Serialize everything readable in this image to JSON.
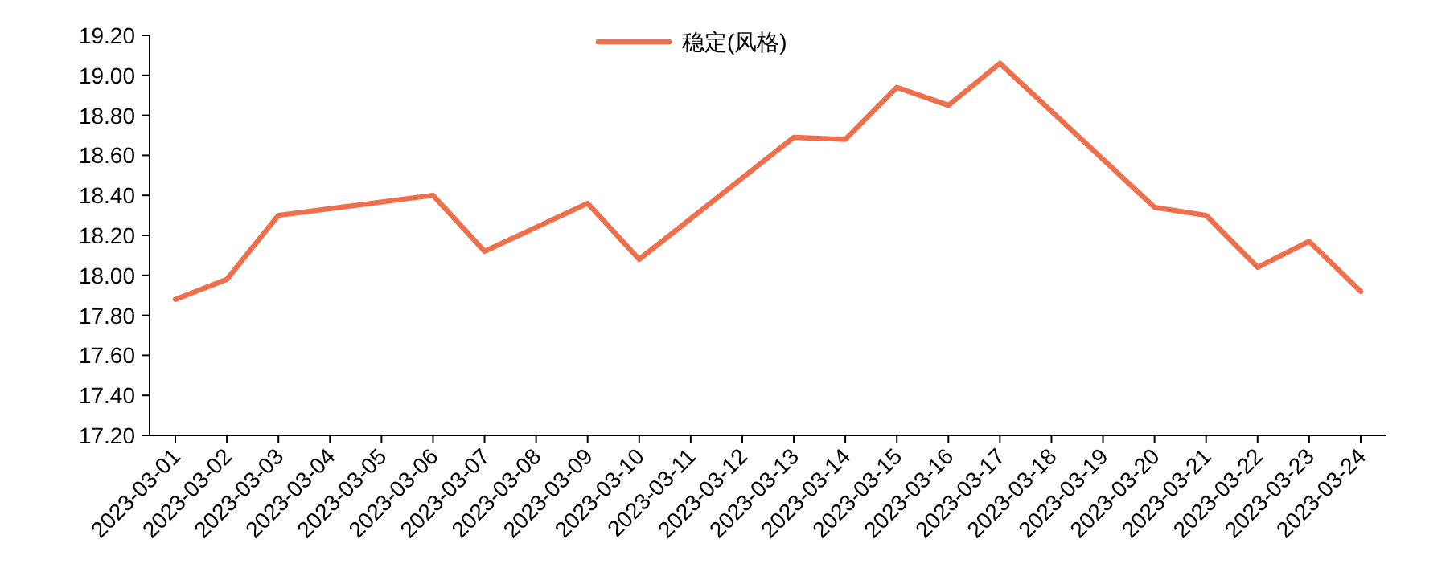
{
  "chart_data": {
    "type": "line",
    "x": [
      "2023-03-01",
      "2023-03-02",
      "2023-03-03",
      "2023-03-06",
      "2023-03-07",
      "2023-03-09",
      "2023-03-10",
      "2023-03-13",
      "2023-03-14",
      "2023-03-15",
      "2023-03-16",
      "2023-03-17",
      "2023-03-20",
      "2023-03-21",
      "2023-03-22",
      "2023-03-23",
      "2023-03-24"
    ],
    "series": [
      {
        "name": "稳定(风格)",
        "color": "#ee6f4b",
        "values": [
          17.88,
          17.98,
          18.3,
          18.4,
          18.12,
          18.36,
          18.08,
          18.69,
          18.68,
          18.94,
          18.85,
          19.06,
          18.34,
          18.3,
          18.04,
          18.17,
          17.92
        ]
      }
    ],
    "xticks": [
      "2023-03-01",
      "2023-03-02",
      "2023-03-03",
      "2023-03-04",
      "2023-03-05",
      "2023-03-06",
      "2023-03-07",
      "2023-03-08",
      "2023-03-09",
      "2023-03-10",
      "2023-03-11",
      "2023-03-12",
      "2023-03-13",
      "2023-03-14",
      "2023-03-15",
      "2023-03-16",
      "2023-03-17",
      "2023-03-18",
      "2023-03-19",
      "2023-03-20",
      "2023-03-21",
      "2023-03-22",
      "2023-03-23",
      "2023-03-24"
    ],
    "xlim": [
      "2023-02-28T12:00",
      "2023-03-24T12:00"
    ],
    "ylim": [
      17.2,
      19.2
    ],
    "yticks": [
      {
        "value": 17.2,
        "label": "17.20"
      },
      {
        "value": 17.4,
        "label": "17.40"
      },
      {
        "value": 17.6,
        "label": "17.60"
      },
      {
        "value": 17.8,
        "label": "17.80"
      },
      {
        "value": 18.0,
        "label": "18.00"
      },
      {
        "value": 18.2,
        "label": "18.20"
      },
      {
        "value": 18.4,
        "label": "18.40"
      },
      {
        "value": 18.6,
        "label": "18.60"
      },
      {
        "value": 18.8,
        "label": "18.80"
      },
      {
        "value": 19.0,
        "label": "19.00"
      },
      {
        "value": 19.2,
        "label": "19.20"
      }
    ],
    "legend": "top",
    "marker": "none",
    "line_style": "solid"
  }
}
